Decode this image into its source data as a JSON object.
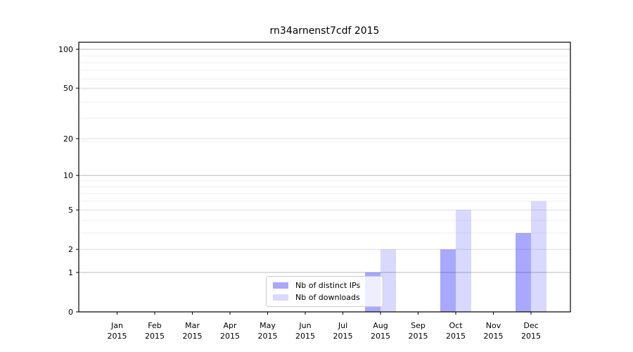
{
  "title": "rn34arnenst7cdf 2015",
  "colors": {
    "distinct_ips_fill": "rgba(0,0,255,0.34)",
    "downloads_fill": "rgba(0,0,255,0.15)",
    "axis": "#000000",
    "tick_text": "#000000",
    "grid_major": "#bababa",
    "grid_mid": "#dedede",
    "grid_minor": "#efefef",
    "legend_border": "#cccccc",
    "legend_bg": "rgba(255,255,255,0.8)"
  },
  "legend": {
    "items": [
      {
        "label": "Nb of distinct IPs",
        "color_key": "distinct_ips_fill"
      },
      {
        "label": "Nb of downloads",
        "color_key": "downloads_fill"
      }
    ]
  },
  "chart_data": {
    "type": "bar",
    "scale": "log1p",
    "title": "rn34arnenst7cdf 2015",
    "xlabel": "",
    "ylabel": "",
    "categories": [
      "Jan",
      "Feb",
      "Mar",
      "Apr",
      "May",
      "Jun",
      "Jul",
      "Aug",
      "Sep",
      "Oct",
      "Nov",
      "Dec"
    ],
    "year_label": "2015",
    "series": [
      {
        "name": "Nb of distinct IPs",
        "values": [
          0,
          0,
          0,
          0,
          0,
          0,
          0,
          1,
          0,
          2,
          0,
          3
        ]
      },
      {
        "name": "Nb of downloads",
        "values": [
          0,
          0,
          0,
          0,
          0,
          0,
          0,
          2,
          0,
          5,
          0,
          6
        ]
      }
    ],
    "yticks": [
      0,
      1,
      2,
      5,
      10,
      20,
      50,
      100
    ],
    "ylim": [
      0,
      112
    ],
    "grid": true,
    "grid_values": {
      "major": [
        1,
        10,
        100
      ],
      "mid": [
        2,
        5,
        20,
        50
      ],
      "minor": [
        3,
        4,
        6,
        7,
        8,
        9,
        19,
        29,
        39,
        49,
        59,
        69,
        79,
        89
      ]
    },
    "legend_position": "lower center-left"
  }
}
